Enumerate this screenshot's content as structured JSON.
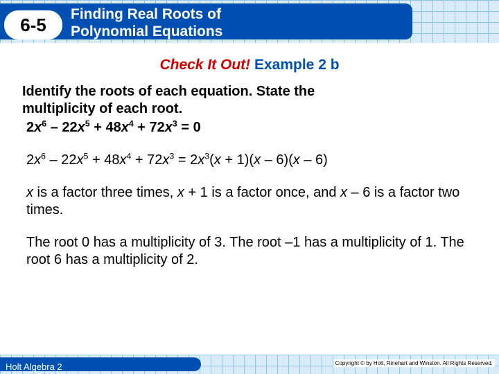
{
  "header": {
    "section_number": "6-5",
    "title_line1": "Finding Real Roots of",
    "title_line2": "Polynomial Equations",
    "grid_bg_color": "#d9ecf8",
    "grid_line_color": "#8fc6e8",
    "bluebar_color": "#0050b4",
    "pill_bg": "#ffffff"
  },
  "check": {
    "red_text": "Check It Out!",
    "blue_text": "Example 2 b",
    "red_color": "#d10000",
    "blue_color": "#0050b4"
  },
  "body": {
    "prompt_line1": "Identify the roots of each equation. State the",
    "prompt_line2": "multiplicity of each root.",
    "eq_problem_html": "2<span class='ital'>x</span><sup>6</sup> – 22<span class='ital'>x</span><sup>5</sup> + 48<span class='ital'>x</span><sup>4</sup> + 72<span class='ital'>x</span><sup>3</sup> = 0",
    "eq_factored_html": "2<span class='ital'>x</span><sup>6</sup> – 22<span class='ital'>x</span><sup>5</sup> + 48<span class='ital'>x</span><sup>4</sup> + 72<span class='ital'>x</span><sup>3</sup> = 2<span class='ital'>x</span><sup>3</sup>(<span class='ital'>x</span> + 1)(<span class='ital'>x</span> – 6)(<span class='ital'>x</span> – 6)",
    "factor_sentence_html": "<span class='ital'>x</span> is a factor three times, <span class='ital'>x</span> + 1 is a factor once, and <span class='ital'>x</span> – 6 is a factor two times.",
    "roots_sentence": "The root 0 has a multiplicity of 3. The root –1 has a multiplicity of 1. The root 6 has a multiplicity of 2."
  },
  "footer": {
    "book": "Holt Algebra 2",
    "copyright": "Copyright © by Holt, Rinehart and Winston. All Rights Reserved."
  }
}
